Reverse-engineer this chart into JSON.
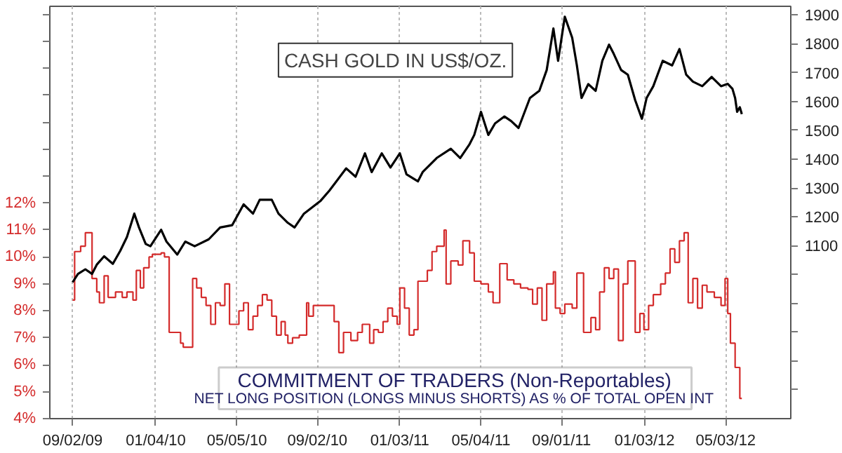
{
  "chart_data": {
    "type": "line",
    "xlim": [
      "2009-07-30",
      "2012-08-08"
    ],
    "ylim": [
      4,
      19.3
    ],
    "y2lim": [
      500,
      1930
    ],
    "xticks": [
      {
        "value": "2009-09-02",
        "label": "09/02/09"
      },
      {
        "value": "2010-01-04",
        "label": "01/04/10"
      },
      {
        "value": "2010-05-05",
        "label": "05/05/10"
      },
      {
        "value": "2010-09-02",
        "label": "09/02/10"
      },
      {
        "value": "2011-01-03",
        "label": "01/03/11"
      },
      {
        "value": "2011-05-04",
        "label": "05/04/11"
      },
      {
        "value": "2011-09-01",
        "label": "09/01/11"
      },
      {
        "value": "2012-01-03",
        "label": "01/03/12"
      },
      {
        "value": "2012-05-03",
        "label": "05/03/12"
      }
    ],
    "yticks": [
      {
        "value": 4,
        "label": "4%"
      },
      {
        "value": 5,
        "label": "5%"
      },
      {
        "value": 6,
        "label": "6%"
      },
      {
        "value": 7,
        "label": "7%"
      },
      {
        "value": 8,
        "label": "8%"
      },
      {
        "value": 9,
        "label": "9%"
      },
      {
        "value": 10,
        "label": "10%"
      },
      {
        "value": 11,
        "label": "11%"
      },
      {
        "value": 12,
        "label": "12%"
      },
      {
        "value": 13,
        "label": null
      },
      {
        "value": 14,
        "label": null
      },
      {
        "value": 15,
        "label": null
      },
      {
        "value": 16,
        "label": null
      },
      {
        "value": 17,
        "label": null
      },
      {
        "value": 18,
        "label": null
      },
      {
        "value": 19,
        "label": null
      }
    ],
    "y2ticks": [
      {
        "value": 600,
        "label": null
      },
      {
        "value": 700,
        "label": null
      },
      {
        "value": 800,
        "label": null
      },
      {
        "value": 900,
        "label": null
      },
      {
        "value": 1000,
        "label": null
      },
      1100,
      1200,
      1300,
      1400,
      1500,
      1600,
      1700,
      1800,
      1900
    ],
    "grid": "x",
    "annotations": [
      "NET LONG POSITION (LONGS MINUS SHORTS) AS % OF TOTAL OPEN INT"
    ],
    "series": [
      {
        "name": "CASH GOLD IN US$/OZ.",
        "axis": "y2",
        "color": "#000000",
        "x": [
          "2009-09-02",
          "2009-09-10",
          "2009-09-21",
          "2009-10-01",
          "2009-10-08",
          "2009-10-19",
          "2009-11-01",
          "2009-11-12",
          "2009-11-22",
          "2009-12-03",
          "2009-12-10",
          "2009-12-20",
          "2009-12-27",
          "2010-01-12",
          "2010-01-20",
          "2010-02-05",
          "2010-02-17",
          "2010-03-03",
          "2010-03-24",
          "2010-04-10",
          "2010-04-28",
          "2010-05-15",
          "2010-05-29",
          "2010-06-08",
          "2010-06-26",
          "2010-07-06",
          "2010-07-20",
          "2010-07-30",
          "2010-08-13",
          "2010-09-07",
          "2010-09-20",
          "2010-10-15",
          "2010-10-29",
          "2010-11-12",
          "2010-11-22",
          "2010-12-07",
          "2010-12-20",
          "2011-01-03",
          "2011-01-13",
          "2011-01-30",
          "2011-02-06",
          "2011-02-27",
          "2011-03-20",
          "2011-04-03",
          "2011-04-17",
          "2011-04-24",
          "2011-05-04",
          "2011-05-15",
          "2011-05-25",
          "2011-06-08",
          "2011-06-18",
          "2011-06-29",
          "2011-07-16",
          "2011-07-30",
          "2011-08-10",
          "2011-08-20",
          "2011-08-27",
          "2011-09-06",
          "2011-09-17",
          "2011-09-24",
          "2011-10-01",
          "2011-10-11",
          "2011-10-22",
          "2011-11-01",
          "2011-11-11",
          "2011-11-18",
          "2011-11-29",
          "2011-12-09",
          "2011-12-20",
          "2011-12-30",
          "2012-01-06",
          "2012-01-16",
          "2012-01-30",
          "2012-02-13",
          "2012-02-24",
          "2012-03-05",
          "2012-03-15",
          "2012-03-29",
          "2012-04-12",
          "2012-04-26",
          "2012-05-06",
          "2012-05-13",
          "2012-05-17",
          "2012-05-20",
          "2012-05-24",
          "2012-05-27"
        ],
        "values": [
          973,
          1002,
          1018,
          1002,
          1034,
          1063,
          1037,
          1082,
          1130,
          1211,
          1163,
          1106,
          1098,
          1155,
          1114,
          1069,
          1114,
          1098,
          1122,
          1163,
          1171,
          1243,
          1211,
          1259,
          1259,
          1211,
          1179,
          1163,
          1211,
          1256,
          1291,
          1368,
          1339,
          1420,
          1355,
          1420,
          1371,
          1420,
          1347,
          1323,
          1355,
          1404,
          1436,
          1404,
          1452,
          1484,
          1564,
          1484,
          1524,
          1548,
          1532,
          1508,
          1612,
          1637,
          1709,
          1853,
          1741,
          1894,
          1821,
          1725,
          1612,
          1660,
          1637,
          1741,
          1797,
          1765,
          1709,
          1693,
          1604,
          1540,
          1612,
          1653,
          1741,
          1725,
          1782,
          1693,
          1669,
          1653,
          1685,
          1653,
          1661,
          1644,
          1612,
          1564,
          1580,
          1556
        ]
      },
      {
        "name": "COMMITMENT OF TRADERS (Non-Reportables)",
        "type": "step",
        "axis": "y",
        "color": "#d42b2b",
        "x": [
          "2009-09-02",
          "2009-09-05",
          "2009-09-14",
          "2009-09-21",
          "2009-10-01",
          "2009-10-08",
          "2009-10-12",
          "2009-10-19",
          "2009-10-25",
          "2009-11-05",
          "2009-11-15",
          "2009-11-22",
          "2009-12-01",
          "2009-12-06",
          "2009-12-12",
          "2009-12-17",
          "2009-12-25",
          "2009-12-30",
          "2010-01-12",
          "2010-01-17",
          "2010-01-24",
          "2010-02-03",
          "2010-02-10",
          "2010-02-14",
          "2010-02-28",
          "2010-03-06",
          "2010-03-13",
          "2010-03-20",
          "2010-03-27",
          "2010-04-03",
          "2010-04-10",
          "2010-04-17",
          "2010-04-24",
          "2010-05-08",
          "2010-05-15",
          "2010-05-22",
          "2010-05-29",
          "2010-06-05",
          "2010-06-12",
          "2010-06-19",
          "2010-06-26",
          "2010-07-03",
          "2010-07-10",
          "2010-07-16",
          "2010-07-20",
          "2010-07-27",
          "2010-08-06",
          "2010-08-17",
          "2010-08-20",
          "2010-08-27",
          "2010-09-07",
          "2010-09-27",
          "2010-10-04",
          "2010-10-11",
          "2010-10-22",
          "2010-11-01",
          "2010-11-08",
          "2010-11-19",
          "2010-11-25",
          "2010-12-02",
          "2010-12-09",
          "2010-12-16",
          "2010-12-23",
          "2010-12-30",
          "2011-01-03",
          "2011-01-10",
          "2011-01-17",
          "2011-01-24",
          "2011-01-30",
          "2011-02-13",
          "2011-02-20",
          "2011-02-27",
          "2011-03-10",
          "2011-03-13",
          "2011-03-20",
          "2011-03-31",
          "2011-04-07",
          "2011-04-17",
          "2011-04-24",
          "2011-05-04",
          "2011-05-15",
          "2011-05-22",
          "2011-06-01",
          "2011-06-12",
          "2011-06-22",
          "2011-07-02",
          "2011-07-13",
          "2011-07-20",
          "2011-07-27",
          "2011-08-03",
          "2011-08-10",
          "2011-08-20",
          "2011-08-23",
          "2011-08-30",
          "2011-09-06",
          "2011-09-17",
          "2011-09-24",
          "2011-10-04",
          "2011-10-15",
          "2011-10-22",
          "2011-10-28",
          "2011-11-04",
          "2011-11-11",
          "2011-11-18",
          "2011-11-25",
          "2011-12-02",
          "2011-12-09",
          "2011-12-20",
          "2011-12-27",
          "2012-01-02",
          "2012-01-09",
          "2012-01-16",
          "2012-01-27",
          "2012-02-03",
          "2012-02-10",
          "2012-02-17",
          "2012-02-24",
          "2012-03-02",
          "2012-03-08",
          "2012-03-15",
          "2012-03-22",
          "2012-03-29",
          "2012-04-05",
          "2012-04-16",
          "2012-04-26",
          "2012-05-02",
          "2012-05-06",
          "2012-05-10",
          "2012-05-17",
          "2012-05-24",
          "2012-05-27"
        ],
        "values": [
          8.4,
          10.2,
          10.4,
          10.9,
          9.2,
          8.7,
          8.3,
          9.3,
          8.5,
          8.7,
          8.5,
          8.7,
          8.4,
          9.5,
          8.85,
          9.6,
          10.0,
          10.1,
          10.15,
          10.0,
          7.2,
          7.2,
          6.8,
          6.65,
          9.2,
          8.85,
          8.5,
          8.2,
          7.5,
          8.3,
          8.2,
          9.0,
          7.5,
          8.0,
          8.3,
          7.3,
          7.8,
          8.2,
          8.6,
          8.4,
          7.8,
          7.1,
          7.6,
          7.1,
          6.8,
          7.0,
          7.1,
          8.3,
          7.8,
          8.2,
          8.2,
          7.6,
          6.45,
          7.2,
          6.9,
          7.2,
          7.5,
          6.8,
          7.3,
          7.2,
          7.6,
          8.1,
          7.8,
          7.5,
          8.85,
          8.1,
          7.1,
          7.3,
          9.1,
          9.5,
          10.2,
          10.4,
          11.0,
          9.0,
          9.85,
          9.7,
          10.6,
          10.15,
          9.1,
          9.0,
          8.7,
          8.3,
          9.75,
          9.15,
          9.0,
          8.85,
          8.8,
          8.25,
          8.85,
          7.65,
          9.0,
          9.45,
          8.1,
          7.9,
          8.25,
          8.1,
          9.4,
          7.2,
          7.75,
          7.3,
          8.7,
          9.6,
          9.2,
          9.55,
          6.9,
          9.0,
          9.85,
          7.2,
          7.9,
          7.3,
          8.2,
          8.6,
          9.0,
          9.4,
          10.3,
          9.8,
          10.6,
          10.9,
          8.3,
          9.2,
          8.1,
          8.95,
          8.7,
          8.5,
          8.2,
          9.2,
          7.9,
          6.8,
          5.9,
          4.75,
          4.75
        ]
      }
    ]
  }
}
